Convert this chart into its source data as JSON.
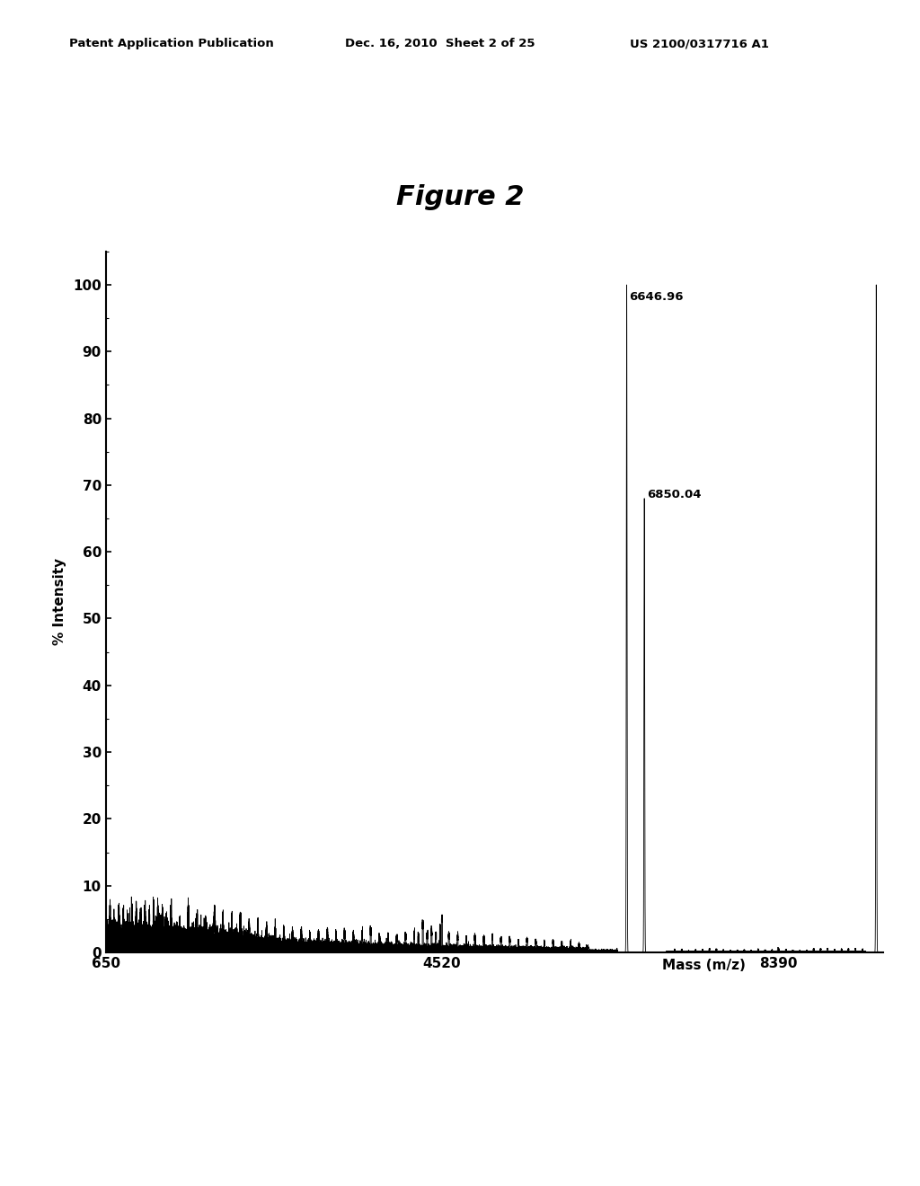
{
  "header_left": "Patent Application Publication",
  "header_mid": "Dec. 16, 2010  Sheet 2 of 25",
  "header_right": "US 2100/0317716 A1",
  "figure_title": "Figure 2",
  "xlabel": "Mass (m/z)",
  "ylabel": "% Intensity",
  "xlim": [
    650,
    9600
  ],
  "ylim": [
    0,
    105
  ],
  "yticks": [
    0,
    10,
    20,
    30,
    40,
    50,
    60,
    70,
    80,
    90,
    100
  ],
  "xtick_positions": [
    650,
    4520,
    8390
  ],
  "xtick_labels": [
    "650",
    "4520",
    "8390"
  ],
  "peak_main_x": 6646.96,
  "peak_main_y": 100.0,
  "peak_main_label": "6646.96",
  "peak_secondary_x": 6850.04,
  "peak_secondary_y": 68.0,
  "peak_secondary_label": "6850.04",
  "peak_far_right_x": 9520,
  "peak_far_right_y": 100.0,
  "background_color": "#ffffff",
  "text_color": "#000000",
  "line_color": "#000000"
}
